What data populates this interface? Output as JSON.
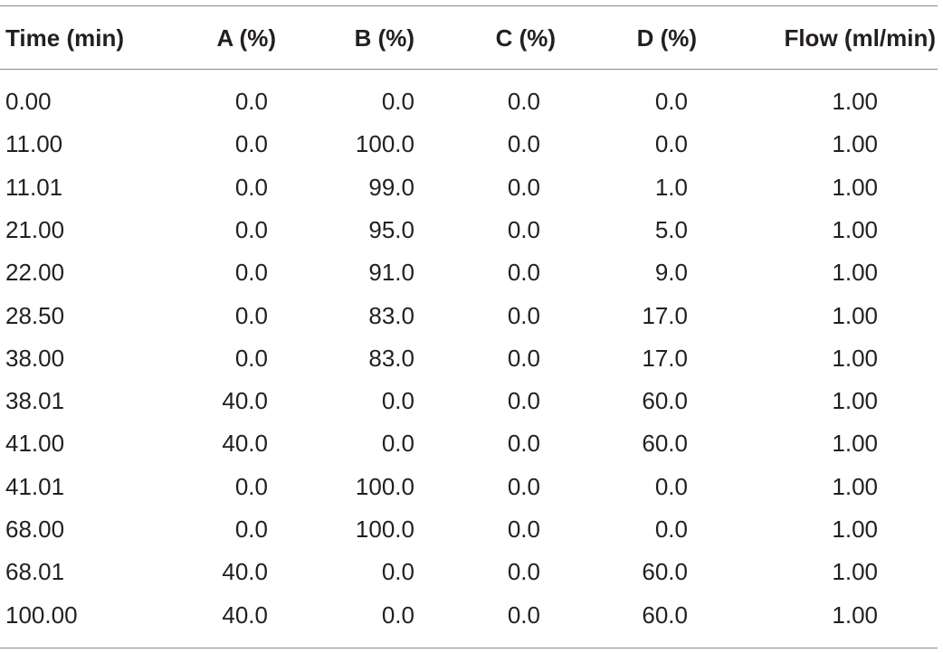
{
  "table": {
    "header": [
      "Time (min)",
      "A (%)",
      "B (%)",
      "C (%)",
      "D (%)",
      "Flow (ml/min)"
    ],
    "rows": [
      [
        "0.00",
        "0.0",
        "0.0",
        "0.0",
        "0.0",
        "1.00"
      ],
      [
        "11.00",
        "0.0",
        "100.0",
        "0.0",
        "0.0",
        "1.00"
      ],
      [
        "11.01",
        "0.0",
        "99.0",
        "0.0",
        "1.0",
        "1.00"
      ],
      [
        "21.00",
        "0.0",
        "95.0",
        "0.0",
        "5.0",
        "1.00"
      ],
      [
        "22.00",
        "0.0",
        "91.0",
        "0.0",
        "9.0",
        "1.00"
      ],
      [
        "28.50",
        "0.0",
        "83.0",
        "0.0",
        "17.0",
        "1.00"
      ],
      [
        "38.00",
        "0.0",
        "83.0",
        "0.0",
        "17.0",
        "1.00"
      ],
      [
        "38.01",
        "40.0",
        "0.0",
        "0.0",
        "60.0",
        "1.00"
      ],
      [
        "41.00",
        "40.0",
        "0.0",
        "0.0",
        "60.0",
        "1.00"
      ],
      [
        "41.01",
        "0.0",
        "100.0",
        "0.0",
        "0.0",
        "1.00"
      ],
      [
        "68.00",
        "0.0",
        "100.0",
        "0.0",
        "0.0",
        "1.00"
      ],
      [
        "68.01",
        "40.0",
        "0.0",
        "0.0",
        "60.0",
        "1.00"
      ],
      [
        "100.00",
        "40.0",
        "0.0",
        "0.0",
        "60.0",
        "1.00"
      ]
    ]
  }
}
